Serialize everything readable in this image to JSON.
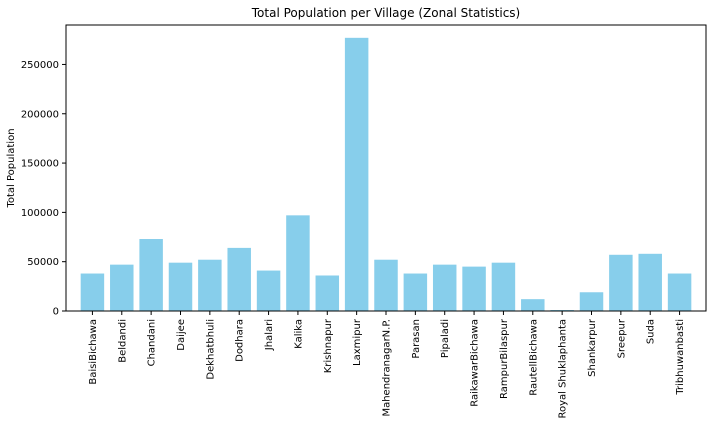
{
  "chart_data": {
    "type": "bar",
    "title": "Total Population per Village (Zonal Statistics)",
    "xlabel": "",
    "ylabel": "Total Population",
    "categories": [
      "BaisiBichawa",
      "Beldandi",
      "Chandani",
      "Daijee",
      "Dekhatbhuli",
      "Dodhara",
      "Jhalari",
      "Kalika",
      "Krishnapur",
      "Laxmipur",
      "MahendranagarN.P.",
      "Parasan",
      "Pipaladi",
      "RaikawarBichawa",
      "RampurBilaspur",
      "RautellBichawa",
      "Royal Shuklaphanta",
      "Shankarpur",
      "Sreepur",
      "Suda",
      "Tribhuwanbasti"
    ],
    "values": [
      38000,
      47000,
      73000,
      49000,
      52000,
      64000,
      41000,
      97000,
      36000,
      277000,
      52000,
      38000,
      47000,
      45000,
      49000,
      12000,
      1000,
      19000,
      57000,
      58000,
      38000
    ],
    "ylim": [
      0,
      290000
    ],
    "yticks": [
      0,
      50000,
      100000,
      150000,
      200000,
      250000
    ],
    "grid": false,
    "legend": "none",
    "colors": {
      "bar": "#87ceeb",
      "axis": "#000000",
      "background": "#ffffff"
    }
  }
}
